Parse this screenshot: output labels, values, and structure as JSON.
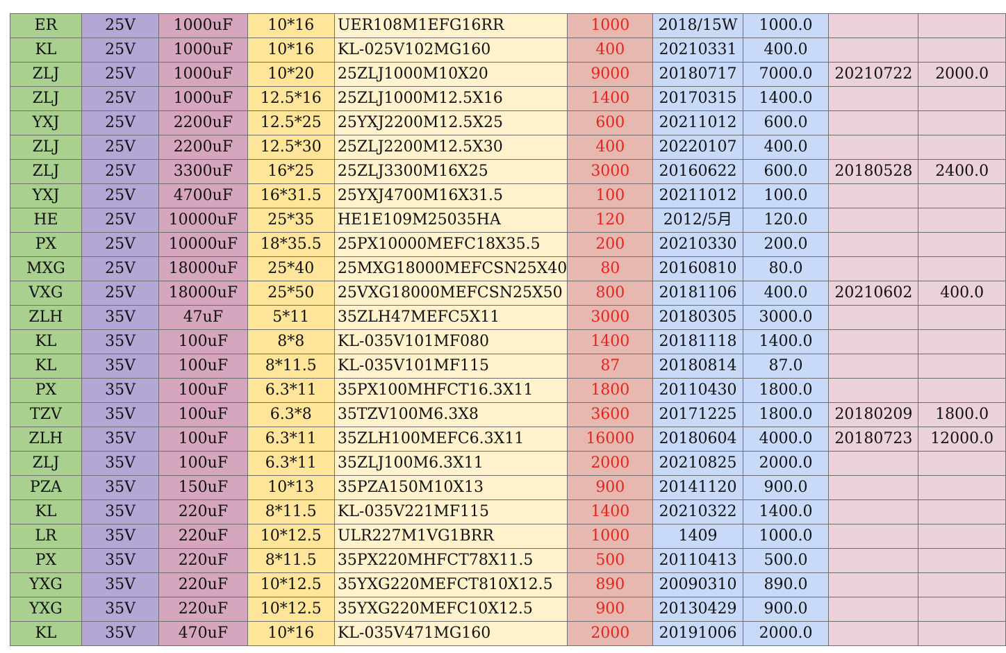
{
  "colors": {
    "col_series": "#a9d08e",
    "col_voltage": "#b4a7d6",
    "col_capacitance": "#d5a6bd",
    "col_size": "#ffe599",
    "col_part": "#fff2cc",
    "col_qty": "#e6b8af",
    "col_date": "#c9daf8",
    "col_stock": "#c9daf8",
    "col_date2": "#ead1dc",
    "col_stock2": "#ead1dc",
    "qty_text": "#e8231c"
  },
  "rows": [
    [
      "ER",
      "25V",
      "1000uF",
      "10*16",
      "UER108M1EFG16RR",
      "1000",
      "2018/15W",
      "1000.0",
      "",
      ""
    ],
    [
      "KL",
      "25V",
      "1000uF",
      "10*16",
      "KL-025V102MG160",
      "400",
      "20210331",
      "400.0",
      "",
      ""
    ],
    [
      "ZLJ",
      "25V",
      "1000uF",
      "10*20",
      "25ZLJ1000M10X20",
      "9000",
      "20180717",
      "7000.0",
      "20210722",
      "2000.0"
    ],
    [
      "ZLJ",
      "25V",
      "1000uF",
      "12.5*16",
      "25ZLJ1000M12.5X16",
      "1400",
      "20170315",
      "1400.0",
      "",
      ""
    ],
    [
      "YXJ",
      "25V",
      "2200uF",
      "12.5*25",
      "25YXJ2200M12.5X25",
      "600",
      "20211012",
      "600.0",
      "",
      ""
    ],
    [
      "ZLJ",
      "25V",
      "2200uF",
      "12.5*30",
      "25ZLJ2200M12.5X30",
      "400",
      "20220107",
      "400.0",
      "",
      ""
    ],
    [
      "ZLJ",
      "25V",
      "3300uF",
      "16*25",
      "25ZLJ3300M16X25",
      "3000",
      "20160622",
      "600.0",
      "20180528",
      "2400.0"
    ],
    [
      "YXJ",
      "25V",
      "4700uF",
      "16*31.5",
      "25YXJ4700M16X31.5",
      "100",
      "20211012",
      "100.0",
      "",
      ""
    ],
    [
      "HE",
      "25V",
      "10000uF",
      "25*35",
      "HE1E109M25035HA",
      "120",
      "2012/5月",
      "120.0",
      "",
      ""
    ],
    [
      "PX",
      "25V",
      "10000uF",
      "18*35.5",
      "25PX10000MEFC18X35.5",
      "200",
      "20210330",
      "200.0",
      "",
      ""
    ],
    [
      "MXG",
      "25V",
      "18000uF",
      "25*40",
      "25MXG18000MEFCSN25X40",
      "80",
      "20160810",
      "80.0",
      "",
      ""
    ],
    [
      "VXG",
      "25V",
      "18000uF",
      "25*50",
      "25VXG18000MEFCSN25X50",
      "800",
      "20181106",
      "400.0",
      "20210602",
      "400.0"
    ],
    [
      "ZLH",
      "35V",
      "47uF",
      "5*11",
      "35ZLH47MEFC5X11",
      "3000",
      "20180305",
      "3000.0",
      "",
      ""
    ],
    [
      "KL",
      "35V",
      "100uF",
      "8*8",
      "KL-035V101MF080",
      "1400",
      "20181118",
      "1400.0",
      "",
      ""
    ],
    [
      "KL",
      "35V",
      "100uF",
      "8*11.5",
      "KL-035V101MF115",
      "87",
      "20180814",
      "87.0",
      "",
      ""
    ],
    [
      "PX",
      "35V",
      "100uF",
      "6.3*11",
      "35PX100MHFCT16.3X11",
      "1800",
      "20110430",
      "1800.0",
      "",
      ""
    ],
    [
      "TZV",
      "35V",
      "100uF",
      "6.3*8",
      "35TZV100M6.3X8",
      "3600",
      "20171225",
      "1800.0",
      "20180209",
      "1800.0"
    ],
    [
      "ZLH",
      "35V",
      "100uF",
      "6.3*11",
      "35ZLH100MEFC6.3X11",
      "16000",
      "20180604",
      "4000.0",
      "20180723",
      "12000.0"
    ],
    [
      "ZLJ",
      "35V",
      "100uF",
      "6.3*11",
      "35ZLJ100M6.3X11",
      "2000",
      "20210825",
      "2000.0",
      "",
      ""
    ],
    [
      "PZA",
      "35V",
      "150uF",
      "10*13",
      "35PZA150M10X13",
      "900",
      "20141120",
      "900.0",
      "",
      ""
    ],
    [
      "KL",
      "35V",
      "220uF",
      "8*11.5",
      "KL-035V221MF115",
      "1400",
      "20210322",
      "1400.0",
      "",
      ""
    ],
    [
      "LR",
      "35V",
      "220uF",
      "10*12.5",
      "ULR227M1VG1BRR",
      "1000",
      "1409",
      "1000.0",
      "",
      ""
    ],
    [
      "PX",
      "35V",
      "220uF",
      "8*11.5",
      "35PX220MHFCT78X11.5",
      "500",
      "20110413",
      "500.0",
      "",
      ""
    ],
    [
      "YXG",
      "35V",
      "220uF",
      "10*12.5",
      "35YXG220MEFCT810X12.5",
      "890",
      "20090310",
      "890.0",
      "",
      ""
    ],
    [
      "YXG",
      "35V",
      "220uF",
      "10*12.5",
      "35YXG220MEFC10X12.5",
      "900",
      "20130429",
      "900.0",
      "",
      ""
    ],
    [
      "KL",
      "35V",
      "470uF",
      "10*16",
      "KL-035V471MG160",
      "2000",
      "20191006",
      "2000.0",
      "",
      ""
    ]
  ]
}
